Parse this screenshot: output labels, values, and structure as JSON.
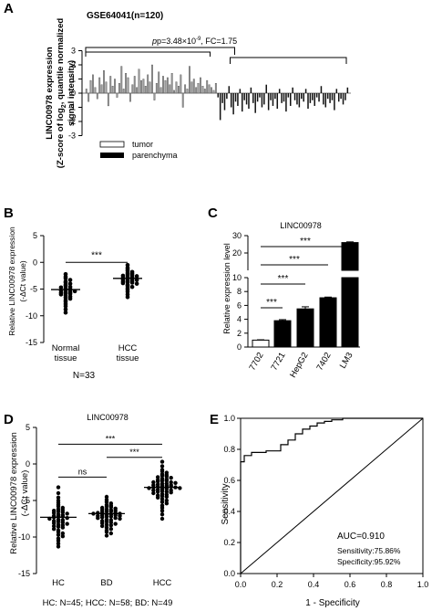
{
  "figure": {
    "panel_labels": [
      "A",
      "B",
      "C",
      "D",
      "E"
    ]
  },
  "chart_data": [
    {
      "panel": "A",
      "type": "bar",
      "title": "GSE64041(n=120)",
      "annotation": "p=3.48×10-9, FC=1.75",
      "annotation_parts": {
        "p_prefix": "p=3.48×10",
        "p_exp": "-9",
        "fc": ", FC=1.75"
      },
      "ylabel_lines": [
        "LINC00978 expression",
        "(Z-score of log",
        "2",
        ", quantile normalized",
        "signal intensity)"
      ],
      "ylim": [
        -3,
        3
      ],
      "yticks": [
        -3,
        -2,
        -1,
        0,
        1,
        2,
        3
      ],
      "legend": [
        "tumor",
        "parenchyma"
      ],
      "legend_placement": "bottom-left",
      "series": [
        {
          "name": "tumor",
          "color": "#9a9a9a",
          "values": [
            0.3,
            -0.6,
            0.9,
            1.3,
            0.4,
            -0.4,
            1.1,
            0.6,
            1.6,
            0.8,
            -0.9,
            1.2,
            0.5,
            1.0,
            -0.3,
            0.7,
            1.9,
            0.3,
            1.4,
            1.1,
            -0.6,
            0.6,
            1.2,
            0.4,
            1.7,
            0.9,
            1.0,
            0.5,
            1.3,
            0.8,
            2.0,
            -0.5,
            0.7,
            1.5,
            0.4,
            1.2,
            0.9,
            1.1,
            0.6,
            1.4,
            0.2,
            0.8,
            0.5,
            1.3,
            -1.0,
            0.6,
            0.3,
            1.9,
            0.8,
            1.0,
            0.4,
            0.7,
            1.1,
            0.5,
            0.3,
            0.9,
            0.6,
            0.4,
            0.2,
            0.7
          ]
        },
        {
          "name": "parenchyma",
          "color": "#111111",
          "values": [
            -0.3,
            -1.9,
            -0.7,
            -1.2,
            -0.4,
            0.5,
            -1.0,
            -1.5,
            -0.6,
            -0.9,
            0.3,
            -1.3,
            -0.5,
            -0.8,
            -1.1,
            0.4,
            -0.7,
            -1.4,
            -0.6,
            -0.3,
            -1.0,
            -0.8,
            0.6,
            -1.2,
            -0.5,
            -0.9,
            -0.4,
            -1.1,
            0.3,
            -0.7,
            -0.6,
            -1.3,
            -0.3,
            -0.9,
            0.4,
            -0.5,
            -0.8,
            -1.0,
            -0.4,
            -0.6,
            0.3,
            -1.1,
            -0.7,
            -0.5,
            -0.9,
            -0.3,
            -0.6,
            0.5,
            -0.8,
            -1.0,
            -0.4,
            -0.7,
            -0.5,
            -1.2,
            0.3,
            -0.6,
            -0.4,
            -0.8,
            -0.5,
            0.4
          ]
        }
      ]
    },
    {
      "panel": "B",
      "type": "scatter",
      "ylabel_lines": [
        "Relative LINC00978 expression",
        "(-ΔCt value)"
      ],
      "ylim": [
        -15,
        5
      ],
      "yticks": [
        -15,
        -10,
        -5,
        0,
        5
      ],
      "categories": [
        "Normal tissue",
        "HCC tissue"
      ],
      "category_lines": [
        [
          "Normal",
          "tissue"
        ],
        [
          "HCC",
          "tissue"
        ]
      ],
      "caption": "N=33",
      "significance": "***",
      "groups": [
        {
          "name": "Normal tissue",
          "mean": -5.1,
          "values": [
            -2.2,
            -2.7,
            -3.0,
            -3.3,
            -3.6,
            -3.8,
            -4.0,
            -4.2,
            -4.4,
            -4.6,
            -4.7,
            -4.9,
            -5.0,
            -5.1,
            -5.2,
            -5.3,
            -5.4,
            -5.5,
            -5.6,
            -5.7,
            -5.8,
            -5.9,
            -6.0,
            -6.2,
            -6.4,
            -6.6,
            -6.8,
            -7.1,
            -7.4,
            -7.8,
            -8.2,
            -8.8,
            -9.4
          ]
        },
        {
          "name": "HCC tissue",
          "mean": -3.0,
          "values": [
            -0.5,
            -1.0,
            -1.3,
            -1.6,
            -1.8,
            -2.0,
            -2.1,
            -2.3,
            -2.4,
            -2.5,
            -2.6,
            -2.7,
            -2.8,
            -2.9,
            -3.0,
            -3.1,
            -3.2,
            -3.3,
            -3.4,
            -3.5,
            -3.6,
            -3.7,
            -3.8,
            -3.9,
            -4.0,
            -4.2,
            -4.4,
            -4.6,
            -4.8,
            -5.1,
            -5.5,
            -6.0,
            -6.5
          ]
        }
      ]
    },
    {
      "panel": "C",
      "type": "bar",
      "title": "LINC00978",
      "ylabel": "Relative expression level",
      "categories": [
        "7702",
        "7721",
        "HepG2",
        "7402",
        "LM3"
      ],
      "values": [
        1.0,
        3.8,
        5.5,
        7.1,
        26.0
      ],
      "errors": [
        0.05,
        0.15,
        0.3,
        0.1,
        0.4
      ],
      "colors": [
        "#ffffff",
        "#000000",
        "#000000",
        "#000000",
        "#000000"
      ],
      "axis_break": {
        "lower": [
          0,
          10
        ],
        "upper": [
          10,
          30
        ]
      },
      "yticks_lower": [
        0,
        2,
        4,
        6,
        8,
        10
      ],
      "yticks_upper": [
        20,
        30
      ],
      "significance": [
        "***",
        "***",
        "***",
        "***"
      ]
    },
    {
      "panel": "D",
      "type": "scatter",
      "title": "LINC00978",
      "ylabel_lines": [
        "Relative LINC00978 expression",
        "(-ΔCt value)"
      ],
      "ylim": [
        -15,
        5
      ],
      "yticks": [
        -15,
        -10,
        -5,
        0,
        5
      ],
      "categories": [
        "HC",
        "BD",
        "HCC"
      ],
      "caption": "HC: N=45; HCC: N=58; BD: N=49",
      "significance": [
        "ns",
        "***",
        "***"
      ],
      "groups": [
        {
          "name": "HC",
          "mean": -7.3,
          "values": [
            -3.2,
            -4.0,
            -4.6,
            -5.0,
            -5.3,
            -5.6,
            -5.8,
            -6.0,
            -6.2,
            -6.3,
            -6.4,
            -6.5,
            -6.6,
            -6.7,
            -6.8,
            -6.9,
            -7.0,
            -7.1,
            -7.2,
            -7.2,
            -7.3,
            -7.4,
            -7.5,
            -7.6,
            -7.7,
            -7.8,
            -7.9,
            -8.0,
            -8.1,
            -8.2,
            -8.3,
            -8.4,
            -8.5,
            -8.6,
            -8.7,
            -8.9,
            -9.1,
            -9.3,
            -9.5,
            -9.7,
            -9.9,
            -10.2,
            -10.5,
            -10.9,
            -11.3
          ]
        },
        {
          "name": "BD",
          "mean": -6.8,
          "values": [
            -4.5,
            -4.9,
            -5.2,
            -5.4,
            -5.6,
            -5.7,
            -5.8,
            -5.9,
            -6.0,
            -6.1,
            -6.2,
            -6.3,
            -6.3,
            -6.4,
            -6.5,
            -6.5,
            -6.6,
            -6.7,
            -6.7,
            -6.8,
            -6.8,
            -6.9,
            -6.9,
            -7.0,
            -7.0,
            -7.1,
            -7.1,
            -7.2,
            -7.2,
            -7.3,
            -7.4,
            -7.4,
            -7.5,
            -7.6,
            -7.7,
            -7.8,
            -7.9,
            -8.0,
            -8.1,
            -8.2,
            -8.3,
            -8.4,
            -8.5,
            -8.7,
            -8.9,
            -9.1,
            -9.3,
            -9.5,
            -9.8
          ]
        },
        {
          "name": "HCC",
          "mean": -3.2,
          "values": [
            0.3,
            -0.3,
            -0.8,
            -1.0,
            -1.2,
            -1.4,
            -1.5,
            -1.6,
            -1.7,
            -1.8,
            -1.9,
            -2.0,
            -2.1,
            -2.2,
            -2.3,
            -2.3,
            -2.4,
            -2.5,
            -2.5,
            -2.6,
            -2.7,
            -2.7,
            -2.8,
            -2.9,
            -2.9,
            -3.0,
            -3.0,
            -3.1,
            -3.1,
            -3.2,
            -3.2,
            -3.3,
            -3.3,
            -3.4,
            -3.4,
            -3.5,
            -3.6,
            -3.6,
            -3.7,
            -3.8,
            -3.8,
            -3.9,
            -4.0,
            -4.1,
            -4.2,
            -4.3,
            -4.4,
            -4.5,
            -4.6,
            -4.8,
            -5.0,
            -5.2,
            -5.4,
            -5.7,
            -6.0,
            -6.4,
            -6.9,
            -7.5
          ]
        }
      ]
    },
    {
      "panel": "E",
      "type": "line",
      "title": "",
      "xlabel": "1 - Specificity",
      "ylabel": "Sensitivity",
      "xlim": [
        0,
        1
      ],
      "ylim": [
        0,
        1
      ],
      "ticks": [
        "0.0",
        "0.2",
        "0.4",
        "0.6",
        "0.8",
        "1.0"
      ],
      "tick_values": [
        0,
        0.2,
        0.4,
        0.6,
        0.8,
        1.0
      ],
      "auc_label": "AUC=0.910",
      "sensitivity_label": "Sensitivity:75.86%",
      "specificity_label": "Specificity:95.92%",
      "roc": {
        "x": [
          0,
          0,
          0.02,
          0.02,
          0.06,
          0.06,
          0.14,
          0.14,
          0.22,
          0.22,
          0.26,
          0.26,
          0.3,
          0.3,
          0.34,
          0.34,
          0.38,
          0.38,
          0.42,
          0.42,
          0.46,
          0.46,
          0.5,
          0.5,
          0.56,
          0.56,
          1.0
        ],
        "y": [
          0,
          0.72,
          0.72,
          0.76,
          0.76,
          0.78,
          0.78,
          0.79,
          0.79,
          0.83,
          0.83,
          0.86,
          0.86,
          0.9,
          0.9,
          0.93,
          0.93,
          0.95,
          0.95,
          0.97,
          0.97,
          0.98,
          0.98,
          0.99,
          0.99,
          1.0,
          1.0
        ]
      },
      "reference_line": {
        "x": [
          0,
          1
        ],
        "y": [
          0,
          1
        ]
      }
    }
  ]
}
